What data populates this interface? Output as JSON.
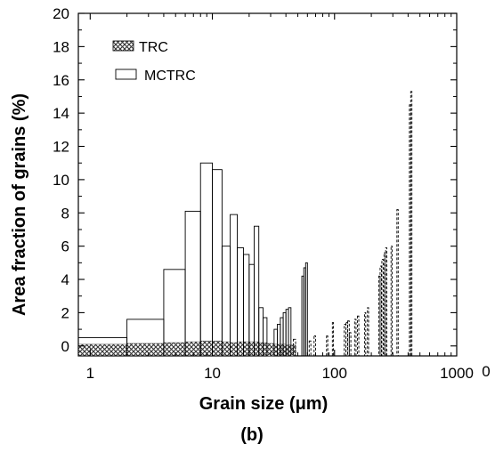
{
  "chart_data": {
    "type": "bar",
    "xlabel": "Grain size (μm)",
    "ylabel": "Area fraction of grains (%)",
    "panel_label": "(b)",
    "extra_tick_label": "0",
    "x_scale": "log",
    "xlim": [
      0.8,
      1000
    ],
    "ylim": [
      -0.6,
      20
    ],
    "x_ticks": [
      1,
      10,
      100,
      1000
    ],
    "x_tick_labels": [
      "1",
      "10",
      "100",
      "1000"
    ],
    "y_ticks": [
      0,
      2,
      4,
      6,
      8,
      10,
      12,
      14,
      16,
      18,
      20
    ],
    "y_tick_labels": [
      "0",
      "2",
      "4",
      "6",
      "8",
      "10",
      "12",
      "14",
      "16",
      "18",
      "20"
    ],
    "grid": false,
    "legend_position": "top-left",
    "series": [
      {
        "name": "TRC",
        "style": "crosshatch",
        "color": "#444444",
        "bars": [
          {
            "x0": 0.8,
            "x1": 1.0,
            "value": 0.1
          },
          {
            "x0": 1.0,
            "x1": 2.0,
            "value": 0.1
          },
          {
            "x0": 2.0,
            "x1": 4.0,
            "value": 0.15
          },
          {
            "x0": 4.0,
            "x1": 6.0,
            "value": 0.2
          },
          {
            "x0": 6.0,
            "x1": 8.0,
            "value": 0.25
          },
          {
            "x0": 8.0,
            "x1": 10.0,
            "value": 0.3
          },
          {
            "x0": 10.0,
            "x1": 12.0,
            "value": 0.3
          },
          {
            "x0": 12.0,
            "x1": 14.0,
            "value": 0.25
          },
          {
            "x0": 14.0,
            "x1": 16.0,
            "value": 0.2
          },
          {
            "x0": 16.0,
            "x1": 20.0,
            "value": 0.25
          },
          {
            "x0": 20.0,
            "x1": 24.0,
            "value": 0.25
          },
          {
            "x0": 24.0,
            "x1": 28.0,
            "value": 0.2
          },
          {
            "x0": 28.0,
            "x1": 32.0,
            "value": 0.15
          },
          {
            "x0": 32.0,
            "x1": 36.0,
            "value": 0.1
          },
          {
            "x0": 36.0,
            "x1": 40.0,
            "value": 0.1
          },
          {
            "x0": 40.0,
            "x1": 44.0,
            "value": 0.05
          },
          {
            "x0": 44.0,
            "x1": 48.0,
            "value": 0.05
          }
        ]
      },
      {
        "name": "MCTRC",
        "style": "open",
        "color": "#000000",
        "bars": [
          {
            "x0": 0.8,
            "x1": 2.0,
            "value": 0.5
          },
          {
            "x0": 2.0,
            "x1": 4.0,
            "value": 1.6
          },
          {
            "x0": 4.0,
            "x1": 6.0,
            "value": 4.6
          },
          {
            "x0": 6.0,
            "x1": 8.0,
            "value": 8.1
          },
          {
            "x0": 8.0,
            "x1": 10.0,
            "value": 11.0
          },
          {
            "x0": 10.0,
            "x1": 12.0,
            "value": 10.6
          },
          {
            "x0": 12.0,
            "x1": 14.0,
            "value": 6.0
          },
          {
            "x0": 14.0,
            "x1": 16.0,
            "value": 7.9
          },
          {
            "x0": 16.0,
            "x1": 18.0,
            "value": 5.9
          },
          {
            "x0": 18.0,
            "x1": 20.0,
            "value": 5.5
          },
          {
            "x0": 20.0,
            "x1": 22.0,
            "value": 4.9
          },
          {
            "x0": 22.0,
            "x1": 24.0,
            "value": 7.2
          },
          {
            "x0": 24.0,
            "x1": 26.0,
            "value": 2.3
          },
          {
            "x0": 26.0,
            "x1": 28.0,
            "value": 1.7
          },
          {
            "x0": 32.0,
            "x1": 34.0,
            "value": 1.0
          },
          {
            "x0": 34.0,
            "x1": 36.0,
            "value": 1.3
          },
          {
            "x0": 36.0,
            "x1": 38.0,
            "value": 1.7
          },
          {
            "x0": 38.0,
            "x1": 40.0,
            "value": 2.0
          },
          {
            "x0": 40.0,
            "x1": 42.0,
            "value": 2.2
          },
          {
            "x0": 42.0,
            "x1": 44.0,
            "value": 2.3
          },
          {
            "x0": 54.0,
            "x1": 56.0,
            "value": 4.2
          },
          {
            "x0": 56.0,
            "x1": 58.0,
            "value": 4.7
          },
          {
            "x0": 58.0,
            "x1": 60.0,
            "value": 5.0
          }
        ]
      },
      {
        "name": "",
        "style": "dashed",
        "color": "#000000",
        "bars": [
          {
            "x0": 46.0,
            "x1": 48.0,
            "value": 0.4
          },
          {
            "x0": 62.0,
            "x1": 64.0,
            "value": 0.3
          },
          {
            "x0": 68.0,
            "x1": 70.0,
            "value": 0.6
          },
          {
            "x0": 86.0,
            "x1": 88.0,
            "value": 0.6
          },
          {
            "x0": 96.0,
            "x1": 98.0,
            "value": 1.4
          },
          {
            "x0": 120.0,
            "x1": 124.0,
            "value": 1.3
          },
          {
            "x0": 124.0,
            "x1": 128.0,
            "value": 1.4
          },
          {
            "x0": 128.0,
            "x1": 132.0,
            "value": 1.5
          },
          {
            "x0": 132.0,
            "x1": 136.0,
            "value": 0.8
          },
          {
            "x0": 146.0,
            "x1": 150.0,
            "value": 1.6
          },
          {
            "x0": 154.0,
            "x1": 158.0,
            "value": 1.8
          },
          {
            "x0": 176.0,
            "x1": 180.0,
            "value": 2.0
          },
          {
            "x0": 186.0,
            "x1": 190.0,
            "value": 2.3
          },
          {
            "x0": 230.0,
            "x1": 236.0,
            "value": 4.2
          },
          {
            "x0": 236.0,
            "x1": 242.0,
            "value": 4.8
          },
          {
            "x0": 244.0,
            "x1": 250.0,
            "value": 5.2
          },
          {
            "x0": 254.0,
            "x1": 260.0,
            "value": 5.6
          },
          {
            "x0": 262.0,
            "x1": 268.0,
            "value": 5.9
          },
          {
            "x0": 290.0,
            "x1": 296.0,
            "value": 6.0
          },
          {
            "x0": 324.0,
            "x1": 332.0,
            "value": 8.2
          },
          {
            "x0": 410.0,
            "x1": 420.0,
            "value": 14.5
          },
          {
            "x0": 420.0,
            "x1": 430.0,
            "value": 15.3
          }
        ]
      }
    ]
  }
}
